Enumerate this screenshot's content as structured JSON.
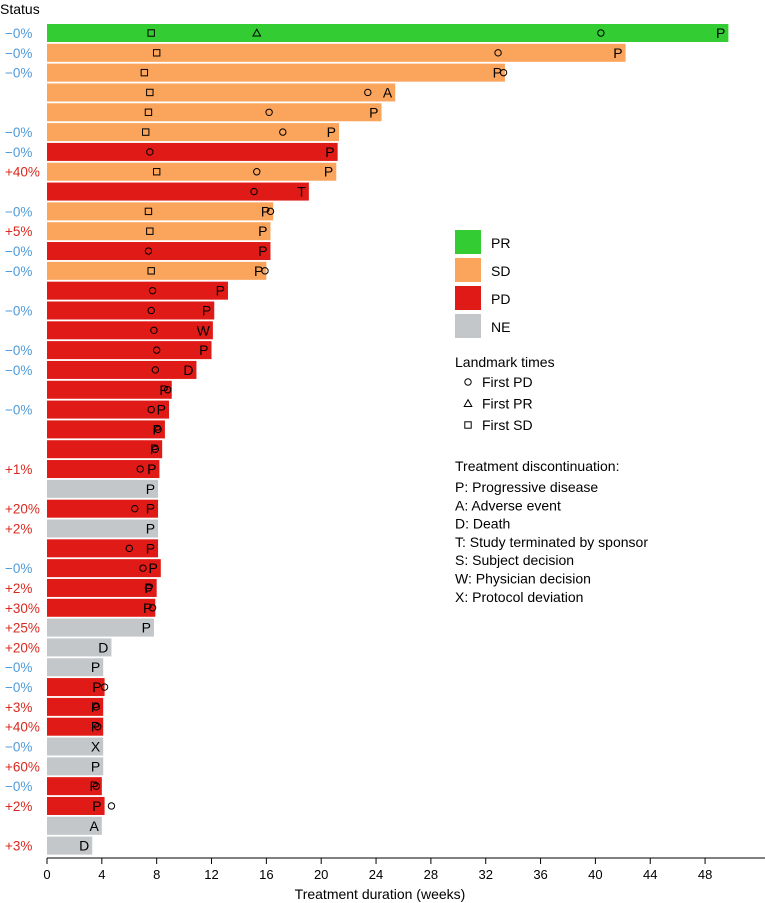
{
  "chart_data": {
    "type": "bar",
    "orientation": "horizontal",
    "title": "",
    "status_header": "Status",
    "xlabel": "Treatment duration (weeks)",
    "ylabel": "",
    "xlim": [
      0,
      52.5
    ],
    "xticks": [
      0,
      4,
      8,
      12,
      16,
      20,
      24,
      28,
      32,
      36,
      40,
      44,
      48
    ],
    "grid": false,
    "colors": {
      "PR": "#33cc33",
      "SD": "#fba45b",
      "PD": "#e01a16",
      "NE": "#c3c7c9",
      "status_neg": "#4f9ad9",
      "status_pos": "#d8281e"
    },
    "legend_title_landmark": "Landmark times",
    "legend_title_disc": "Treatment discontinuation:",
    "response_legend": [
      {
        "key": "PR",
        "label": "PR"
      },
      {
        "key": "SD",
        "label": "SD"
      },
      {
        "key": "PD",
        "label": "PD"
      },
      {
        "key": "NE",
        "label": "NE"
      }
    ],
    "landmark_legend": [
      {
        "marker": "circle",
        "label": "First PD"
      },
      {
        "marker": "triangle",
        "label": "First PR"
      },
      {
        "marker": "square",
        "label": "First SD"
      }
    ],
    "discontinuation_legend": [
      "P: Progressive disease",
      "A: Adverse event",
      "D: Death",
      "T: Study terminated by sponsor",
      "S: Subject decision",
      "W: Physician decision",
      "X: Protocol deviation"
    ],
    "patients": [
      {
        "status": "−0%",
        "response": "PR",
        "duration": 49.7,
        "reason": "P",
        "first_pd": 40.4,
        "first_pr": 15.3,
        "first_sd": 7.6
      },
      {
        "status": "−0%",
        "response": "SD",
        "duration": 42.2,
        "reason": "P",
        "first_pd": 32.9,
        "first_sd": 8.0
      },
      {
        "status": "−0%",
        "response": "SD",
        "duration": 33.4,
        "reason": "P",
        "first_pd": 33.3,
        "first_sd": 7.1
      },
      {
        "status": "",
        "response": "SD",
        "duration": 25.4,
        "reason": "A",
        "first_pd": 23.4,
        "first_sd": 7.5
      },
      {
        "status": "",
        "response": "SD",
        "duration": 24.4,
        "reason": "P",
        "first_pd": 16.2,
        "first_sd": 7.4
      },
      {
        "status": "−0%",
        "response": "SD",
        "duration": 21.3,
        "reason": "P",
        "first_pd": 17.2,
        "first_sd": 7.2
      },
      {
        "status": "−0%",
        "response": "PD",
        "duration": 21.2,
        "reason": "P",
        "first_pd": 7.5
      },
      {
        "status": "+40%",
        "response": "SD",
        "duration": 21.1,
        "reason": "P",
        "first_pd": 15.3,
        "first_sd": 8.0
      },
      {
        "status": "",
        "response": "PD",
        "duration": 19.1,
        "reason": "T",
        "first_pd": 15.1
      },
      {
        "status": "−0%",
        "response": "SD",
        "duration": 16.5,
        "reason": "P",
        "first_pd": 16.3,
        "first_sd": 7.4
      },
      {
        "status": "+5%",
        "response": "SD",
        "duration": 16.3,
        "reason": "P",
        "first_sd": 7.5
      },
      {
        "status": "−0%",
        "response": "PD",
        "duration": 16.3,
        "reason": "P",
        "first_pd": 7.4
      },
      {
        "status": "−0%",
        "response": "SD",
        "duration": 16.0,
        "reason": "P",
        "first_pd": 15.9,
        "first_sd": 7.6
      },
      {
        "status": "",
        "response": "PD",
        "duration": 13.2,
        "reason": "P",
        "first_pd": 7.7
      },
      {
        "status": "−0%",
        "response": "PD",
        "duration": 12.2,
        "reason": "P",
        "first_pd": 7.6
      },
      {
        "status": "",
        "response": "PD",
        "duration": 12.1,
        "reason": "W",
        "first_pd": 7.8
      },
      {
        "status": "−0%",
        "response": "PD",
        "duration": 12.0,
        "reason": "P",
        "first_pd": 8.0
      },
      {
        "status": "−0%",
        "response": "PD",
        "duration": 10.9,
        "reason": "D",
        "first_pd": 7.9
      },
      {
        "status": "",
        "response": "PD",
        "duration": 9.1,
        "reason": "P",
        "first_pd": 8.8
      },
      {
        "status": "−0%",
        "response": "PD",
        "duration": 8.9,
        "reason": "P",
        "first_pd": 7.6
      },
      {
        "status": "",
        "response": "PD",
        "duration": 8.6,
        "reason": "P",
        "first_pd": 8.1
      },
      {
        "status": "",
        "response": "PD",
        "duration": 8.4,
        "reason": "P",
        "first_pd": 7.9
      },
      {
        "status": "+1%",
        "response": "PD",
        "duration": 8.2,
        "reason": "P",
        "first_pd": 6.8
      },
      {
        "status": "",
        "response": "NE",
        "duration": 8.1,
        "reason": "P"
      },
      {
        "status": "+20%",
        "response": "PD",
        "duration": 8.1,
        "reason": "P",
        "first_pd": 6.4
      },
      {
        "status": "+2%",
        "response": "NE",
        "duration": 8.1,
        "reason": "P"
      },
      {
        "status": "",
        "response": "PD",
        "duration": 8.1,
        "reason": "P",
        "first_pd": 6.0
      },
      {
        "status": "−0%",
        "response": "PD",
        "duration": 8.3,
        "reason": "P",
        "first_pd": 7.0
      },
      {
        "status": "+2%",
        "response": "PD",
        "duration": 8.0,
        "reason": "P",
        "first_pd": 7.4
      },
      {
        "status": "+30%",
        "response": "PD",
        "duration": 7.9,
        "reason": "P",
        "first_pd": 7.7
      },
      {
        "status": "+25%",
        "response": "NE",
        "duration": 7.8,
        "reason": "P"
      },
      {
        "status": "+20%",
        "response": "NE",
        "duration": 4.7,
        "reason": "D"
      },
      {
        "status": "−0%",
        "response": "NE",
        "duration": 4.1,
        "reason": "P"
      },
      {
        "status": "−0%",
        "response": "PD",
        "duration": 4.2,
        "reason": "P",
        "first_pd": 4.2
      },
      {
        "status": "+3%",
        "response": "PD",
        "duration": 4.1,
        "reason": "P",
        "first_pd": 3.6
      },
      {
        "status": "+40%",
        "response": "PD",
        "duration": 4.1,
        "reason": "P",
        "first_pd": 3.7
      },
      {
        "status": "−0%",
        "response": "NE",
        "duration": 4.1,
        "reason": "X"
      },
      {
        "status": "+60%",
        "response": "NE",
        "duration": 4.1,
        "reason": "P"
      },
      {
        "status": "−0%",
        "response": "PD",
        "duration": 4.0,
        "reason": "P",
        "first_pd": 3.6
      },
      {
        "status": "+2%",
        "response": "PD",
        "duration": 4.2,
        "reason": "P",
        "first_pd": 4.7
      },
      {
        "status": "",
        "response": "NE",
        "duration": 4.0,
        "reason": "A"
      },
      {
        "status": "+3%",
        "response": "NE",
        "duration": 3.3,
        "reason": "D"
      }
    ]
  }
}
